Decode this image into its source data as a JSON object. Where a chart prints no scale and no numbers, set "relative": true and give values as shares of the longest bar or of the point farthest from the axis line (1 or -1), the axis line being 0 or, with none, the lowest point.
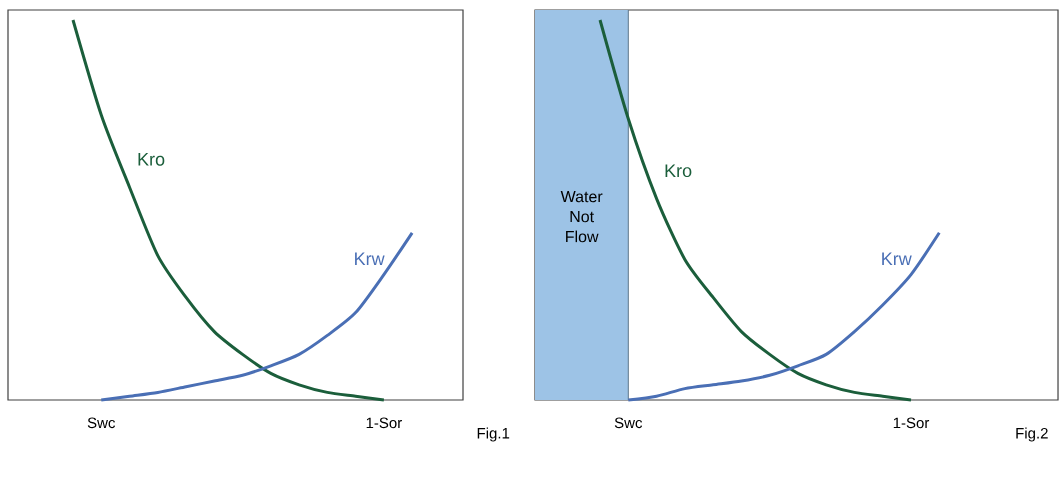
{
  "chart_data": [
    {
      "type": "line",
      "relative": true,
      "categories": [
        null,
        "Swc",
        null,
        null,
        null,
        null,
        null,
        null,
        null,
        null,
        null,
        "1-Sor",
        null
      ],
      "annotations": [
        "Fig.1"
      ],
      "series": [
        {
          "name": "Kro",
          "color": "#1b5e3b",
          "values": [
            1.0,
            0.75,
            0.56,
            0.38,
            0.27,
            0.18,
            0.12,
            0.07,
            0.04,
            0.02,
            0.01,
            0,
            null
          ]
        },
        {
          "name": "Krw",
          "color": "#4a6fb5",
          "values": [
            null,
            0,
            0.01,
            0.02,
            0.035,
            0.05,
            0.065,
            0.09,
            0.12,
            0.17,
            0.23,
            0.33,
            0.44
          ]
        }
      ]
    },
    {
      "type": "line",
      "relative": true,
      "categories": [
        null,
        "Swc",
        null,
        null,
        null,
        null,
        null,
        null,
        null,
        null,
        null,
        "1-Sor",
        null
      ],
      "annotations": [
        "Water Not Flow",
        "Fig.2"
      ],
      "series": [
        {
          "name": "Kro",
          "color": "#1b5e3b",
          "values": [
            1.0,
            0.74,
            0.53,
            0.37,
            0.27,
            0.18,
            0.12,
            0.07,
            0.04,
            0.02,
            0.01,
            0,
            null
          ]
        },
        {
          "name": "Krw",
          "color": "#4a6fb5",
          "values": [
            null,
            0,
            0.01,
            0.03,
            0.04,
            0.05,
            0.065,
            0.09,
            0.12,
            0.18,
            0.25,
            0.33,
            0.44
          ]
        }
      ]
    }
  ]
}
